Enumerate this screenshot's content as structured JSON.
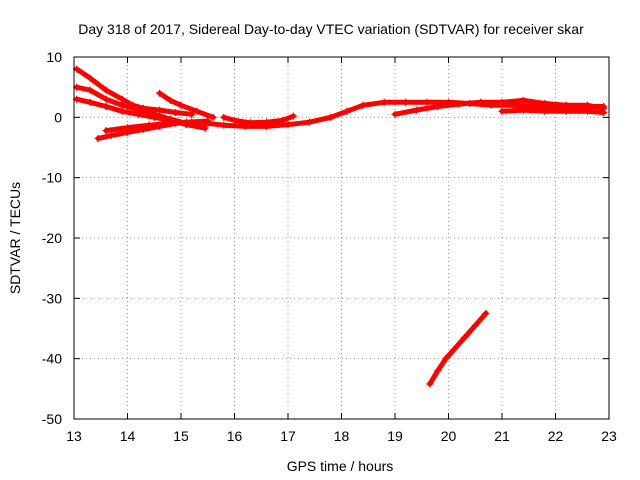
{
  "chart_data": {
    "type": "scatter",
    "title": "Day 318 of 2017, Sidereal Day-to-day VTEC variation (SDTVAR) for receiver skar",
    "xlabel": "GPS time / hours",
    "ylabel": "SDTVAR / TECUs",
    "xlim": [
      13,
      23
    ],
    "ylim": [
      -50,
      10
    ],
    "xticks": [
      13,
      14,
      15,
      16,
      17,
      18,
      19,
      20,
      21,
      22,
      23
    ],
    "yticks": [
      10,
      0,
      -10,
      -20,
      -30,
      -40,
      -50
    ],
    "grid": true,
    "marker": "plus",
    "color": "#ff0000",
    "series": [
      {
        "name": "track-1",
        "points": [
          [
            13.05,
            8.0
          ],
          [
            13.3,
            6.5
          ],
          [
            13.6,
            4.5
          ],
          [
            13.9,
            3.0
          ],
          [
            14.1,
            2.0
          ],
          [
            14.3,
            1.5
          ],
          [
            14.6,
            1.2
          ],
          [
            14.9,
            0.8
          ],
          [
            15.2,
            0.5
          ]
        ]
      },
      {
        "name": "track-2",
        "points": [
          [
            13.05,
            5.0
          ],
          [
            13.3,
            4.5
          ],
          [
            13.6,
            3.0
          ],
          [
            13.9,
            2.0
          ],
          [
            14.2,
            1.3
          ],
          [
            14.5,
            0.5
          ],
          [
            14.8,
            -0.3
          ],
          [
            15.1,
            -1.0
          ]
        ]
      },
      {
        "name": "track-3",
        "points": [
          [
            13.05,
            3.0
          ],
          [
            13.3,
            2.5
          ],
          [
            13.6,
            1.8
          ],
          [
            13.9,
            1.0
          ],
          [
            14.2,
            0.5
          ],
          [
            14.5,
            0.0
          ],
          [
            14.8,
            -0.5
          ],
          [
            15.1,
            -1.2
          ],
          [
            15.45,
            -1.8
          ]
        ]
      },
      {
        "name": "track-4",
        "points": [
          [
            14.6,
            4.0
          ],
          [
            14.8,
            2.8
          ],
          [
            15.0,
            2.0
          ],
          [
            15.3,
            1.0
          ],
          [
            15.6,
            0.0
          ]
        ]
      },
      {
        "name": "track-5",
        "points": [
          [
            13.45,
            -3.5
          ],
          [
            13.7,
            -3.0
          ],
          [
            14.0,
            -2.5
          ],
          [
            14.3,
            -2.0
          ],
          [
            14.6,
            -1.5
          ],
          [
            14.9,
            -1.0
          ],
          [
            15.2,
            -0.8
          ],
          [
            15.5,
            -1.0
          ],
          [
            15.8,
            -1.3
          ],
          [
            16.2,
            -1.5
          ],
          [
            16.6,
            -1.5
          ],
          [
            17.0,
            -1.2
          ],
          [
            17.4,
            -0.8
          ],
          [
            17.8,
            0.0
          ],
          [
            18.1,
            1.0
          ],
          [
            18.4,
            2.0
          ],
          [
            18.8,
            2.5
          ],
          [
            19.2,
            2.5
          ],
          [
            19.6,
            2.5
          ],
          [
            20.0,
            2.5
          ],
          [
            20.4,
            2.3
          ],
          [
            20.8,
            2.0
          ],
          [
            21.2,
            2.0
          ],
          [
            21.6,
            1.8
          ],
          [
            22.0,
            1.8
          ],
          [
            22.4,
            1.8
          ],
          [
            22.9,
            1.8
          ]
        ]
      },
      {
        "name": "track-6",
        "points": [
          [
            13.6,
            -2.2
          ],
          [
            14.0,
            -1.7
          ],
          [
            14.4,
            -1.3
          ],
          [
            14.8,
            -1.0
          ],
          [
            15.1,
            -0.8
          ],
          [
            15.5,
            -0.6
          ]
        ]
      },
      {
        "name": "track-7",
        "points": [
          [
            15.8,
            0.0
          ],
          [
            16.0,
            -0.5
          ],
          [
            16.3,
            -0.9
          ],
          [
            16.6,
            -0.8
          ],
          [
            16.9,
            -0.5
          ],
          [
            17.1,
            0.2
          ]
        ]
      },
      {
        "name": "track-8",
        "points": [
          [
            19.0,
            0.5
          ],
          [
            19.4,
            1.2
          ],
          [
            19.8,
            1.8
          ],
          [
            20.2,
            2.2
          ],
          [
            20.6,
            2.5
          ],
          [
            21.0,
            2.5
          ],
          [
            21.4,
            2.8
          ],
          [
            21.8,
            2.3
          ],
          [
            22.2,
            2.0
          ],
          [
            22.6,
            2.0
          ],
          [
            22.9,
            1.5
          ]
        ]
      },
      {
        "name": "track-9",
        "points": [
          [
            21.0,
            1.0
          ],
          [
            21.4,
            1.2
          ],
          [
            21.8,
            1.0
          ],
          [
            22.2,
            1.0
          ],
          [
            22.6,
            1.0
          ],
          [
            22.9,
            0.8
          ]
        ]
      },
      {
        "name": "track-10",
        "points": [
          [
            19.65,
            -44.2
          ],
          [
            19.8,
            -42.0
          ],
          [
            19.95,
            -40.0
          ],
          [
            20.1,
            -38.5
          ],
          [
            20.3,
            -36.5
          ],
          [
            20.5,
            -34.5
          ],
          [
            20.7,
            -32.5
          ]
        ]
      }
    ]
  }
}
